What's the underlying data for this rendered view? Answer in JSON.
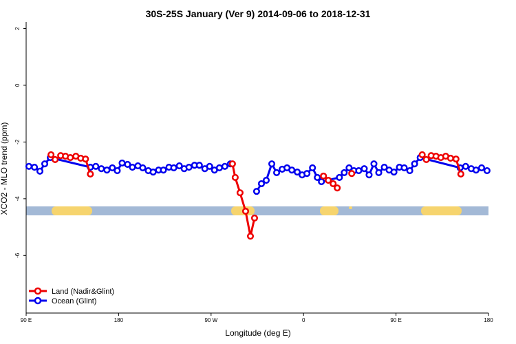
{
  "chart_data": {
    "type": "line",
    "title": "30S-25S January (Ver 9)   2014-09-06 to 2018-12-31",
    "x_label": "Longitude (deg E)",
    "y_label": "XCO2 - MLO trend (ppm)",
    "xlim": [
      90,
      540
    ],
    "xticks": [
      {
        "value": 90,
        "label": "90 E"
      },
      {
        "value": 180,
        "label": "180"
      },
      {
        "value": 270,
        "label": "90 W"
      },
      {
        "value": 360,
        "label": "0"
      },
      {
        "value": 450,
        "label": "90 E"
      },
      {
        "value": 540,
        "label": "180"
      }
    ],
    "ylim": [
      -8.03,
      2.23
    ],
    "yticks": [
      -6,
      -4,
      -2,
      0,
      2
    ],
    "legend": "bottom-left",
    "series": [
      {
        "name": "Ocean (Glint)",
        "color": "#0000ee",
        "x": [
          92.7,
          98.1,
          103.4,
          108.1,
          113.5,
          152.5,
          157.8,
          163.2,
          168.6,
          173.9,
          178.7,
          183.4,
          188.7,
          193.4,
          198.8,
          203.5,
          208.9,
          213.6,
          218.9,
          223.6,
          229.0,
          233.7,
          239.1,
          243.8,
          248.5,
          253.9,
          258.6,
          263.9,
          268.6,
          273.3,
          278.1,
          283.4,
          288.8,
          null,
          314.3,
          319.0,
          323.7,
          329.1,
          333.8,
          339.2,
          343.9,
          348.6,
          353.9,
          358.6,
          363.3,
          368.7,
          373.4,
          377.4,
          394.9,
          399.6,
          404.3,
          409.0,
          413.7,
          419.1,
          423.8,
          428.5,
          433.2,
          438.6,
          443.3,
          448.0,
          453.3,
          458.0,
          463.4,
          468.1,
          473.5,
          512.4,
          517.8,
          523.2,
          527.9,
          533.3,
          538.6
        ],
        "values": [
          -2.86,
          -2.89,
          -3.03,
          -2.77,
          -2.55,
          -2.89,
          -2.86,
          -2.94,
          -2.99,
          -2.91,
          -3.01,
          -2.74,
          -2.79,
          -2.89,
          -2.84,
          -2.91,
          -3.01,
          -3.06,
          -2.99,
          -2.99,
          -2.89,
          -2.91,
          -2.84,
          -2.94,
          -2.89,
          -2.82,
          -2.82,
          -2.94,
          -2.86,
          -2.99,
          -2.91,
          -2.86,
          -2.77,
          null,
          -3.74,
          -3.47,
          -3.35,
          -2.77,
          -3.08,
          -2.96,
          -2.91,
          -2.99,
          -3.06,
          -3.16,
          -3.11,
          -2.91,
          -3.25,
          -3.4,
          -3.25,
          -3.08,
          -2.91,
          -3.01,
          -3.01,
          -2.94,
          -3.16,
          -2.77,
          -3.08,
          -2.89,
          -2.99,
          -3.06,
          -2.89,
          -2.91,
          -3.01,
          -2.77,
          -2.55,
          -2.91,
          -2.86,
          -2.94,
          -2.99,
          -2.91,
          -3.01
        ]
      },
      {
        "name": "Land (Nadir&Glint)",
        "color": "#ee0000",
        "x": [
          114.2,
          118.2,
          123.6,
          128.3,
          133.0,
          138.4,
          143.1,
          147.8,
          152.5,
          null,
          290.8,
          293.5,
          298.2,
          303.6,
          308.3,
          312.3,
          null,
          379.4,
          384.1,
          388.8,
          392.8,
          null,
          406.9,
          null,
          475.5,
          479.5,
          484.2,
          488.9,
          493.6,
          498.4,
          503.1,
          508.4,
          513.1
        ],
        "values": [
          -2.45,
          -2.62,
          -2.48,
          -2.5,
          -2.55,
          -2.5,
          -2.57,
          -2.6,
          -3.13,
          null,
          -2.77,
          -3.25,
          -3.79,
          -4.44,
          -5.32,
          -4.68,
          null,
          -3.2,
          -3.35,
          -3.47,
          -3.62,
          null,
          -3.11,
          null,
          -2.45,
          -2.62,
          -2.48,
          -2.5,
          -2.55,
          -2.5,
          -2.57,
          -2.6,
          -3.13
        ]
      }
    ]
  }
}
